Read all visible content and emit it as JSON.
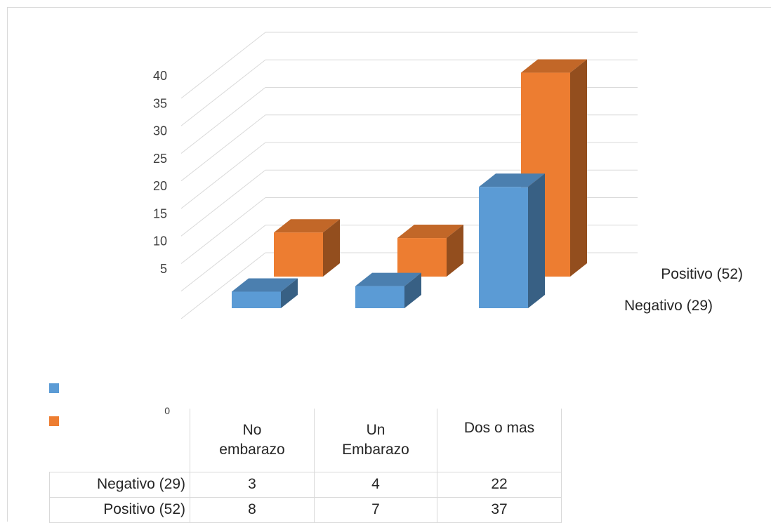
{
  "colors": {
    "negativo": "#5B9BD5",
    "positivo": "#ED7D31",
    "grid": "#d9d9d9"
  },
  "chart_data": {
    "type": "bar",
    "categories": [
      "No embarazo",
      "Un Embarazo",
      "Dos o mas"
    ],
    "category_lines": [
      [
        "No",
        "embarazo"
      ],
      [
        "Un",
        "Embarazo"
      ],
      [
        "Dos o mas"
      ]
    ],
    "series": [
      {
        "name": "Negativo (29)",
        "values": [
          3,
          4,
          22
        ]
      },
      {
        "name": "Positivo (52)",
        "values": [
          8,
          7,
          37
        ]
      }
    ],
    "y_ticks": [
      "0",
      "5",
      "10",
      "15",
      "20",
      "25",
      "30",
      "35",
      "40"
    ],
    "ylim": [
      0,
      40
    ],
    "grid": true,
    "legend": "bottom-left",
    "title": "",
    "xlabel": "",
    "ylabel": ""
  }
}
